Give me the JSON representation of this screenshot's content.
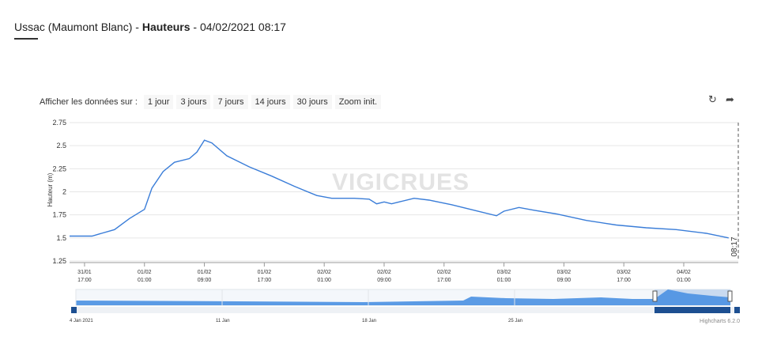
{
  "header": {
    "station": "Ussac (Maumont Blanc) - ",
    "measure": "Hauteurs",
    "datetime": " - 04/02/2021 08:17"
  },
  "toolbar": {
    "label": "Afficher les données sur :",
    "buttons": [
      "1 jour",
      "3 jours",
      "7 jours",
      "14 jours",
      "30 jours",
      "Zoom init."
    ]
  },
  "icons": {
    "reset": "refresh-icon",
    "export": "share-icon"
  },
  "watermark": "VIGICRUES",
  "credit": "Highcharts 6.2.0",
  "colors": {
    "line": "#3a7dd8",
    "navigator_fill": "#4a90e2",
    "navigator_band": "#1d4f91"
  },
  "chart_data": {
    "type": "line",
    "title": "",
    "xlabel": "",
    "ylabel": "Hauteur (m)",
    "ylim": [
      1.25,
      2.75
    ],
    "yticks": [
      1.25,
      1.5,
      1.75,
      2,
      2.25,
      2.5,
      2.75
    ],
    "ytick_labels": [
      "1.25",
      "1.5",
      "1.75",
      "2",
      "2.25",
      "2.5",
      "2.75"
    ],
    "xlim": [
      "31/01 15:00",
      "04/02 08:17"
    ],
    "xticks": [
      {
        "date": "31/01",
        "time": "17:00",
        "t": 2
      },
      {
        "date": "01/02",
        "time": "01:00",
        "t": 10
      },
      {
        "date": "01/02",
        "time": "09:00",
        "t": 18
      },
      {
        "date": "01/02",
        "time": "17:00",
        "t": 26
      },
      {
        "date": "02/02",
        "time": "01:00",
        "t": 34
      },
      {
        "date": "02/02",
        "time": "09:00",
        "t": 42
      },
      {
        "date": "02/02",
        "time": "17:00",
        "t": 50
      },
      {
        "date": "03/02",
        "time": "01:00",
        "t": 58
      },
      {
        "date": "03/02",
        "time": "09:00",
        "t": 66
      },
      {
        "date": "03/02",
        "time": "17:00",
        "t": 74
      },
      {
        "date": "04/02",
        "time": "01:00",
        "t": 82
      }
    ],
    "current_time_label": "08:17",
    "series": [
      {
        "x": [
          "31/01 15:00",
          "31/01 18:00",
          "31/01 21:00",
          "31/01 23:00",
          "01/02 01:00",
          "01/02 02:00",
          "01/02 03:30",
          "01/02 05:00",
          "01/02 07:00",
          "01/02 08:00",
          "01/02 09:00",
          "01/02 10:00",
          "01/02 12:00",
          "01/02 15:00",
          "01/02 18:00",
          "01/02 21:00",
          "02/02 00:00",
          "02/02 02:00",
          "02/02 05:00",
          "02/02 07:00",
          "02/02 08:00",
          "02/02 09:00",
          "02/02 10:00",
          "02/02 11:00",
          "02/02 13:00",
          "02/02 15:00",
          "02/02 18:00",
          "02/02 21:00",
          "03/02 00:00",
          "03/02 01:00",
          "03/02 03:00",
          "03/02 05:00",
          "03/02 08:00",
          "03/02 12:00",
          "03/02 16:00",
          "03/02 20:00",
          "04/02 00:00",
          "04/02 04:00",
          "04/02 07:00"
        ],
        "values": [
          1.52,
          1.52,
          1.59,
          1.71,
          1.81,
          2.04,
          2.22,
          2.32,
          2.36,
          2.43,
          2.56,
          2.53,
          2.39,
          2.27,
          2.17,
          2.06,
          1.96,
          1.93,
          1.93,
          1.92,
          1.87,
          1.89,
          1.87,
          1.89,
          1.93,
          1.91,
          1.86,
          1.8,
          1.74,
          1.79,
          1.83,
          1.8,
          1.76,
          1.69,
          1.64,
          1.61,
          1.59,
          1.55,
          1.5
        ]
      }
    ],
    "navigator": {
      "labels": [
        "4 Jan 2021",
        "11 Jan",
        "18 Jan",
        "25 Jan"
      ]
    }
  }
}
